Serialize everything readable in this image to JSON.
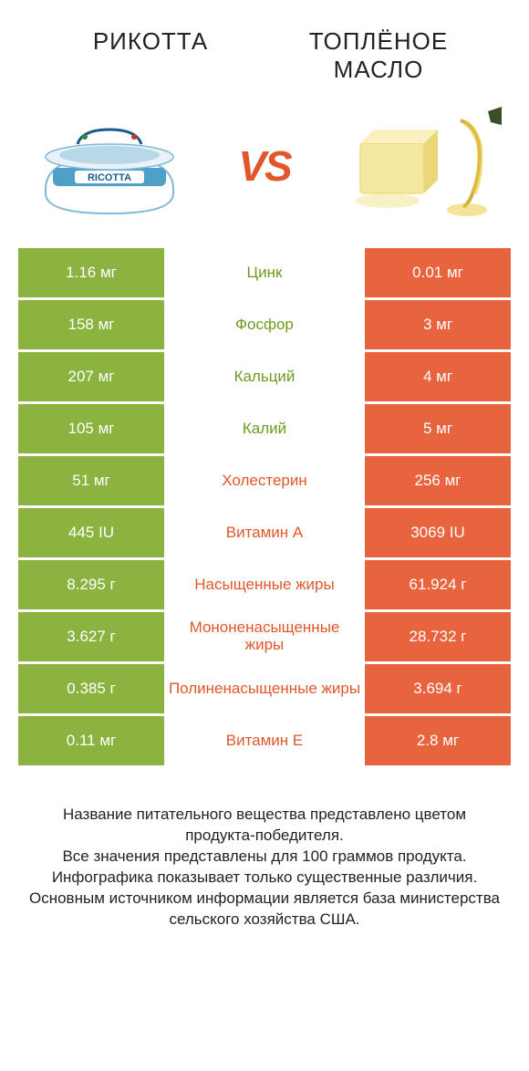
{
  "colors": {
    "green": "#8cb23f",
    "orange": "#e8643f",
    "green_text": "#6e9a1f",
    "orange_text": "#e0572b"
  },
  "header": {
    "left_title": "РИКОТТА",
    "right_title": "ТОПЛЁНОЕ МАСЛО"
  },
  "vs_label": "VS",
  "rows": [
    {
      "left": "1.16 мг",
      "label": "Цинк",
      "right": "0.01 мг",
      "winner": "left"
    },
    {
      "left": "158 мг",
      "label": "Фосфор",
      "right": "3 мг",
      "winner": "left"
    },
    {
      "left": "207 мг",
      "label": "Кальций",
      "right": "4 мг",
      "winner": "left"
    },
    {
      "left": "105 мг",
      "label": "Калий",
      "right": "5 мг",
      "winner": "left"
    },
    {
      "left": "51 мг",
      "label": "Холестерин",
      "right": "256 мг",
      "winner": "right"
    },
    {
      "left": "445 IU",
      "label": "Витамин A",
      "right": "3069 IU",
      "winner": "right"
    },
    {
      "left": "8.295 г",
      "label": "Насыщенные жиры",
      "right": "61.924 г",
      "winner": "right"
    },
    {
      "left": "3.627 г",
      "label": "Мононенасыщенные жиры",
      "right": "28.732 г",
      "winner": "right"
    },
    {
      "left": "0.385 г",
      "label": "Полиненасыщенные жиры",
      "right": "3.694 г",
      "winner": "right"
    },
    {
      "left": "0.11 мг",
      "label": "Витамин E",
      "right": "2.8 мг",
      "winner": "right"
    }
  ],
  "footer": {
    "line1": "Название питательного вещества представлено цветом продукта-победителя.",
    "line2": "Все значения представлены для 100 граммов продукта.",
    "line3": "Инфографика показывает только существенные различия.",
    "line4": "Основным источником информации является база министерства сельского хозяйства США."
  }
}
